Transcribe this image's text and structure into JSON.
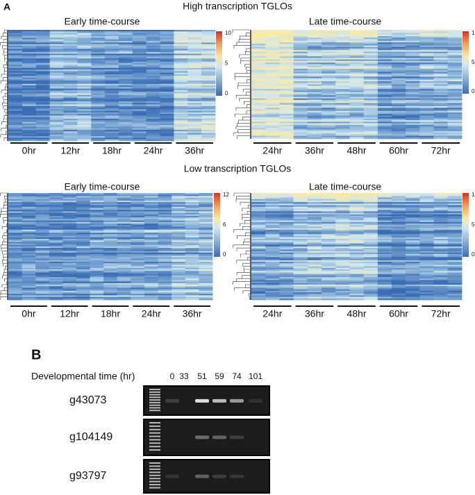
{
  "panel_a": {
    "label": "A",
    "sections": [
      {
        "title": "High transcription TGLOs",
        "heatmaps": [
          {
            "title": "Early time-course",
            "columns": [
              "0hr",
              "12hr",
              "18hr",
              "24hr",
              "36hr"
            ],
            "colorbar": [
              "10",
              "5",
              "0"
            ]
          },
          {
            "title": "Late time-course",
            "columns": [
              "24hr",
              "36hr",
              "48hr",
              "60hr",
              "72hr"
            ],
            "colorbar": [
              "1",
              "5",
              "0"
            ]
          }
        ]
      },
      {
        "title": "Low transcription TGLOs",
        "heatmaps": [
          {
            "title": "Early time-course",
            "columns": [
              "0hr",
              "12hr",
              "18hr",
              "24hr",
              "36hr"
            ],
            "colorbar": [
              "12",
              "6",
              "0"
            ]
          },
          {
            "title": "Late time-course",
            "columns": [
              "24hr",
              "36hr",
              "48hr",
              "60hr",
              "72hr"
            ],
            "colorbar": [
              "1",
              "5",
              "0"
            ]
          }
        ]
      }
    ]
  },
  "panel_b": {
    "label": "B",
    "axis_label": "Developmental time (hr)",
    "lanes": [
      "0",
      "33",
      "51",
      "59",
      "74",
      "101"
    ],
    "genes": [
      "g43073",
      "g104149",
      "g93797"
    ]
  }
}
